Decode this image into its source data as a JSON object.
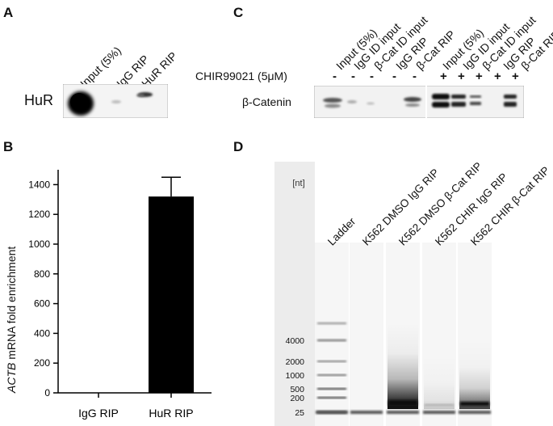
{
  "panelA": {
    "label": "A",
    "columns": [
      "Input (5%)",
      "IgG RIP",
      "HuR RIP"
    ],
    "row_label": "HuR"
  },
  "panelB": {
    "label": "B",
    "chart_data": {
      "type": "bar",
      "categories": [
        "IgG RIP",
        "HuR RIP"
      ],
      "values": [
        0,
        1320
      ],
      "error": [
        0,
        130
      ],
      "ylabel_italic": "ACTB",
      "ylabel_rest": " mRNA fold enrichment",
      "ylim": [
        0,
        1500
      ],
      "yticks": [
        0,
        200,
        400,
        600,
        800,
        1000,
        1200,
        1400
      ],
      "bar_color": "#000000",
      "grid": false
    }
  },
  "panelC": {
    "label": "C",
    "columns": [
      "Input (5%)",
      "IgG ID input",
      "β-Cat ID input",
      "IgG RIP",
      "β-Cat RIP",
      "Input (5%)",
      "IgG ID input",
      "β-Cat ID input",
      "IgG RIP",
      "β-Cat RIP"
    ],
    "treatment_label": "CHIR99021 (5μM)",
    "treatment_signs": [
      "-",
      "-",
      "-",
      "-",
      "-",
      "+",
      "+",
      "+",
      "+",
      "+"
    ],
    "row_label": "β-Catenin"
  },
  "panelD": {
    "label": "D",
    "unit": "[nt]",
    "columns": [
      "Ladder",
      "K562 DMSO IgG RIP",
      "K562 DMSO β-Cat RIP",
      "K562 CHIR IgG RIP",
      "K562 CHIR β-Cat RIP"
    ],
    "sizes": [
      "4000",
      "2000",
      "1000",
      "500",
      "200",
      "25"
    ]
  }
}
